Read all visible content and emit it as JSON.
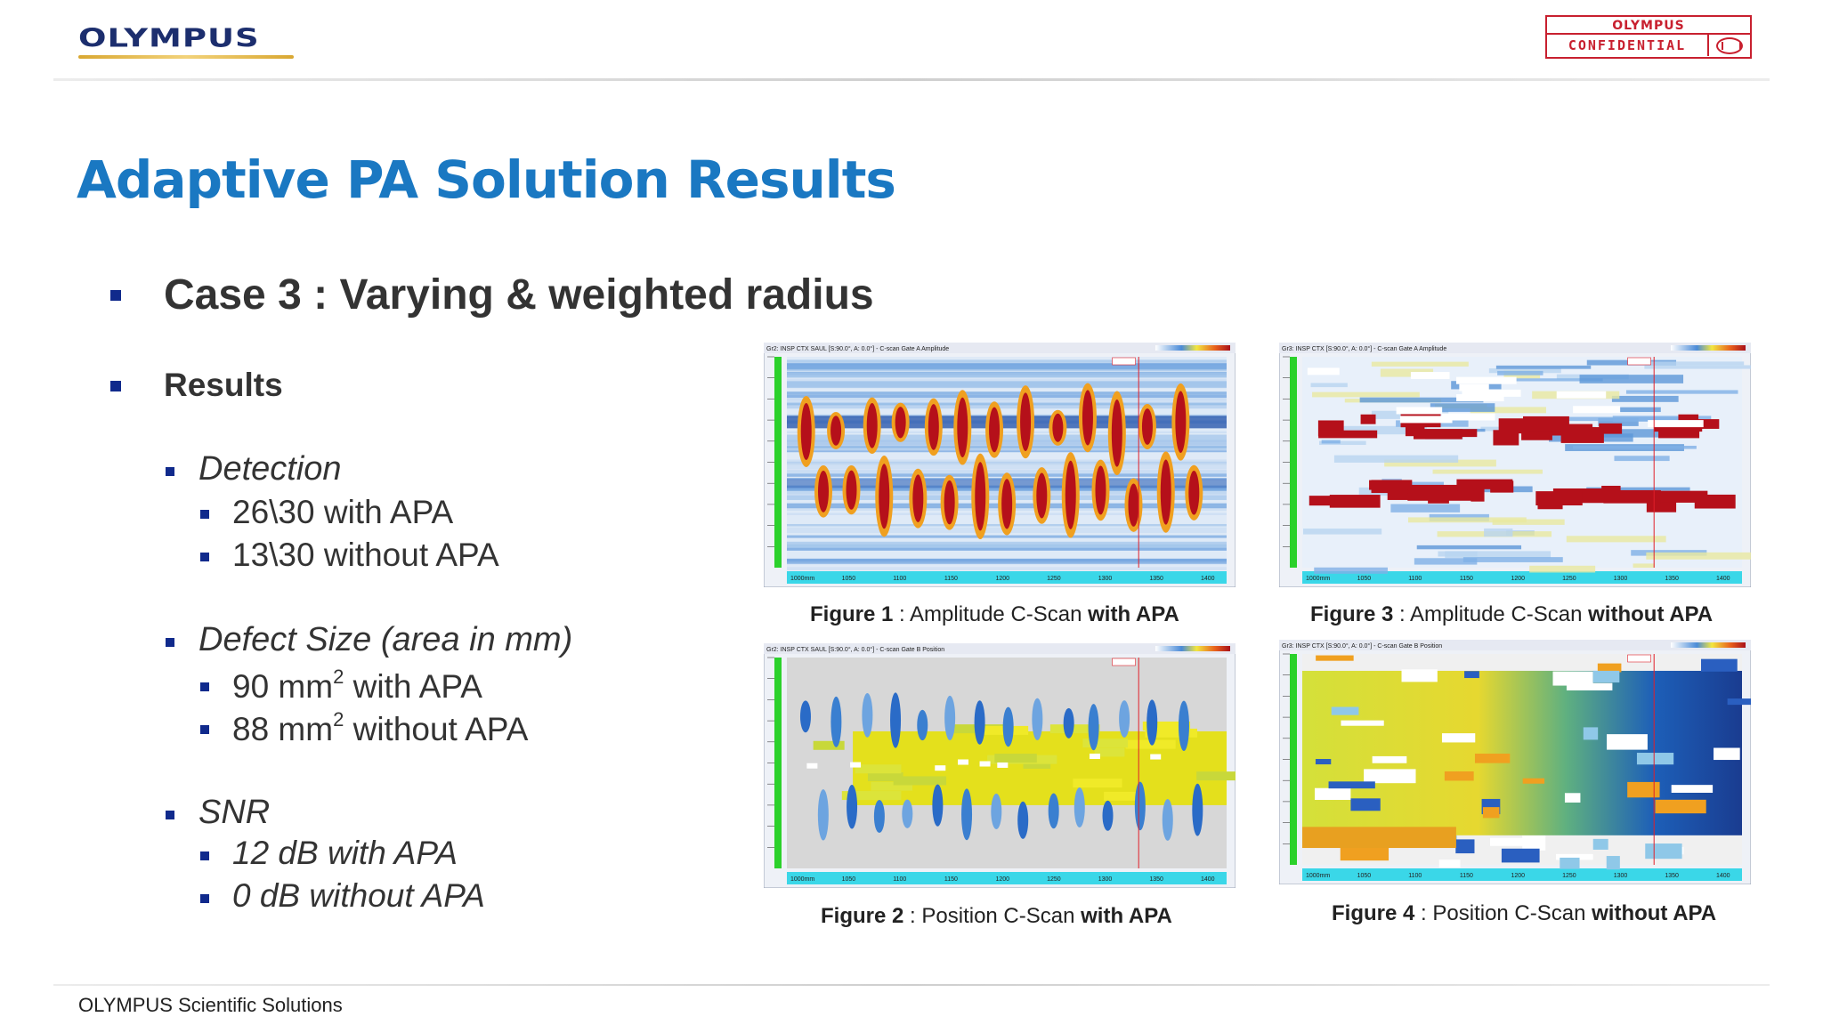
{
  "header": {
    "logo_text": "OLYMPUS",
    "confidential_brand": "OLYMPUS",
    "confidential_label": "CONFIDENTIAL"
  },
  "title": "Adaptive PA Solution Results",
  "case": {
    "label": "Case 3 : Varying & weighted radius"
  },
  "results": {
    "label": "Results",
    "sections": [
      {
        "heading": "Detection",
        "items": [
          "26\\30 with APA",
          "13\\30 without APA"
        ]
      },
      {
        "heading": "Defect Size (area in mm)",
        "items": [
          {
            "pre": "90 mm",
            "sup": "2",
            "post": " with APA"
          },
          {
            "pre": "88 mm",
            "sup": "2",
            "post": " without APA"
          }
        ]
      },
      {
        "heading": "SNR",
        "items": [
          "12 dB with APA",
          "0 dB without APA"
        ]
      }
    ]
  },
  "figures": [
    {
      "fig_label": "Figure 1",
      "sep": " : ",
      "desc": "Amplitude C-Scan ",
      "mode": "with APA",
      "header_text": "Gr2: INSP CTX SAUL [S:90.0°, A: 0.0°] - C-scan Gate A Amplitude",
      "kind": "amp-with",
      "x_ticks": [
        "1000mm",
        "1050",
        "1100",
        "1150",
        "1200",
        "1250",
        "1300",
        "1350",
        "1400"
      ]
    },
    {
      "fig_label": "Figure 2",
      "sep": " : ",
      "desc": "Position C-Scan ",
      "mode": "with APA",
      "header_text": "Gr2: INSP CTX SAUL [S:90.0°, A: 0.0°] - C-scan Gate B Position",
      "kind": "pos-with",
      "x_ticks": [
        "1000mm",
        "1050",
        "1100",
        "1150",
        "1200",
        "1250",
        "1300",
        "1350",
        "1400"
      ]
    },
    {
      "fig_label": "Figure 3",
      "sep": " : ",
      "desc": "Amplitude C-Scan ",
      "mode": "without APA",
      "header_text": "Gr3: INSP CTX [S:90.0°, A: 0.0°] - C-scan Gate A Amplitude",
      "kind": "amp-without",
      "x_ticks": [
        "1000mm",
        "1050",
        "1100",
        "1150",
        "1200",
        "1250",
        "1300",
        "1350",
        "1400"
      ]
    },
    {
      "fig_label": "Figure 4",
      "sep": " : ",
      "desc": "Position C-Scan ",
      "mode": "without APA",
      "header_text": "Gr3: INSP CTX [S:90.0°, A: 0.0°] - C-scan Gate B Position",
      "kind": "pos-without",
      "x_ticks": [
        "1000mm",
        "1050",
        "1100",
        "1150",
        "1200",
        "1250",
        "1300",
        "1350",
        "1400"
      ]
    }
  ],
  "footer": "OLYMPUS Scientific Solutions"
}
